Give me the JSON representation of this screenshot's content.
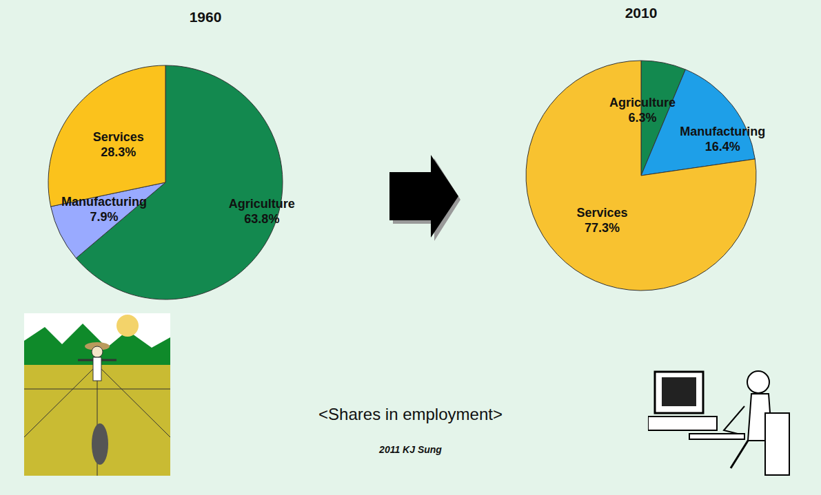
{
  "chart_data": [
    {
      "type": "pie",
      "title": "1960",
      "categories": [
        "Agriculture",
        "Manufacturing",
        "Services"
      ],
      "values": [
        63.8,
        7.9,
        28.3
      ],
      "value_labels": [
        "63.8%",
        "7.9%",
        "28.3%"
      ],
      "colors": [
        "#13894f",
        "#99aaff",
        "#fbc21c"
      ],
      "data_labels": true
    },
    {
      "type": "pie",
      "title": "2010",
      "categories": [
        "Agriculture",
        "Manufacturing",
        "Services"
      ],
      "values": [
        6.3,
        16.4,
        77.3
      ],
      "value_labels": [
        "6.3%",
        "16.4%",
        "77.3%"
      ],
      "colors": [
        "#13894f",
        "#1e9fe8",
        "#f8c230"
      ],
      "data_labels": true
    }
  ],
  "caption": "<Shares in employment>",
  "credit": "2011 KJ Sung"
}
